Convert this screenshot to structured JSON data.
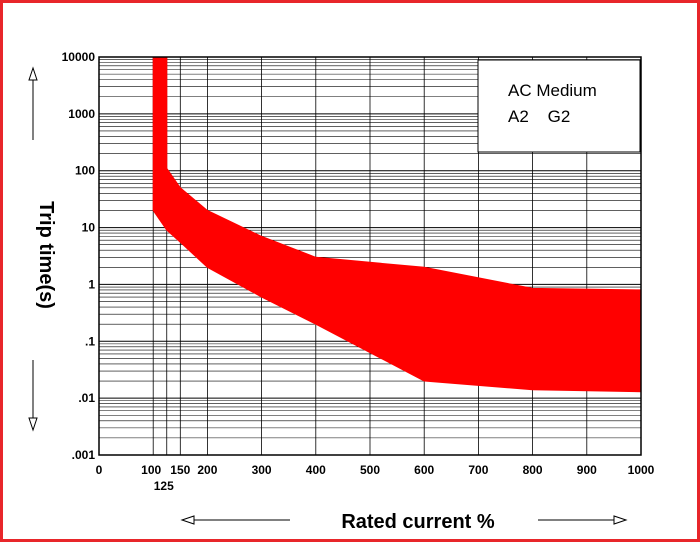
{
  "colors": {
    "frame": "#e8262a",
    "band": "#ff0000",
    "grid": "#000000",
    "background": "#ffffff"
  },
  "chart_data": {
    "type": "area",
    "title": "",
    "xlabel": "Rated current %",
    "ylabel": "Trip time(s)",
    "x_axis": {
      "scale": "linear",
      "range": [
        0,
        1000
      ],
      "ticks": [
        {
          "value": 0,
          "label": "0"
        },
        {
          "value": 100,
          "label": "100"
        },
        {
          "value": 125,
          "label": "125"
        },
        {
          "value": 150,
          "label": "150"
        },
        {
          "value": 200,
          "label": "200"
        },
        {
          "value": 300,
          "label": "300"
        },
        {
          "value": 400,
          "label": "400"
        },
        {
          "value": 500,
          "label": "500"
        },
        {
          "value": 600,
          "label": "600"
        },
        {
          "value": 700,
          "label": "700"
        },
        {
          "value": 800,
          "label": "800"
        },
        {
          "value": 900,
          "label": "900"
        },
        {
          "value": 1000,
          "label": "1000"
        }
      ]
    },
    "y_axis": {
      "scale": "log",
      "range": [
        0.001,
        10000
      ],
      "ticks": [
        {
          "value": 0.001,
          "label": ".001"
        },
        {
          "value": 0.01,
          "label": ".01"
        },
        {
          "value": 0.1,
          "label": ".1"
        },
        {
          "value": 1,
          "label": "1"
        },
        {
          "value": 10,
          "label": "10"
        },
        {
          "value": 100,
          "label": "100"
        },
        {
          "value": 1000,
          "label": "1000"
        },
        {
          "value": 10000,
          "label": "10000"
        }
      ]
    },
    "grid": true,
    "legend": {
      "placement": "top-right",
      "lines": [
        "AC Medium",
        "A2    G2"
      ]
    },
    "band": {
      "upper": [
        {
          "x": 100,
          "y": 10000
        },
        {
          "x": 125,
          "y": 10000
        },
        {
          "x": 125,
          "y": 110
        },
        {
          "x": 150,
          "y": 50
        },
        {
          "x": 200,
          "y": 20
        },
        {
          "x": 300,
          "y": 7
        },
        {
          "x": 400,
          "y": 3
        },
        {
          "x": 600,
          "y": 2
        },
        {
          "x": 800,
          "y": 0.85
        },
        {
          "x": 1000,
          "y": 0.8
        }
      ],
      "lower": [
        {
          "x": 100,
          "y": 20
        },
        {
          "x": 125,
          "y": 9
        },
        {
          "x": 150,
          "y": 5.5
        },
        {
          "x": 200,
          "y": 2
        },
        {
          "x": 300,
          "y": 0.6
        },
        {
          "x": 400,
          "y": 0.2
        },
        {
          "x": 600,
          "y": 0.02
        },
        {
          "x": 800,
          "y": 0.014
        },
        {
          "x": 1000,
          "y": 0.013
        }
      ]
    }
  }
}
